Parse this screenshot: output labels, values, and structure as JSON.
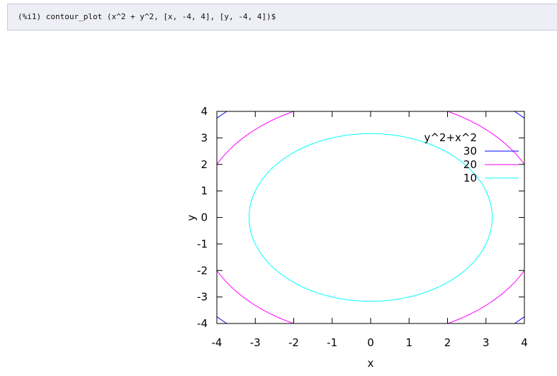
{
  "input_cell": {
    "prompt": "(%i1)",
    "command": "contour_plot (x^2 + y^2, [x, -4, 4], [y, -4, 4])$"
  },
  "chart_data": {
    "type": "contour",
    "function": "y^2+x^2",
    "xlabel": "x",
    "ylabel": "y",
    "xlim": [
      -4,
      4
    ],
    "ylim": [
      -4,
      4
    ],
    "x_ticks": [
      "-4",
      "-3",
      "-2",
      "-1",
      "0",
      "1",
      "2",
      "3",
      "4"
    ],
    "y_ticks": [
      "4",
      "3",
      "2",
      "1",
      "0",
      "-1",
      "-2",
      "-3",
      "-4"
    ],
    "legend_title": "y^2+x^2",
    "legend_placement": "top-right",
    "grid": false,
    "series": [
      {
        "name": "30",
        "level": 30,
        "color": "#0000ff"
      },
      {
        "name": "20",
        "level": 20,
        "color": "#ff00ff"
      },
      {
        "name": "10",
        "level": 10,
        "color": "#00ffff"
      }
    ]
  }
}
